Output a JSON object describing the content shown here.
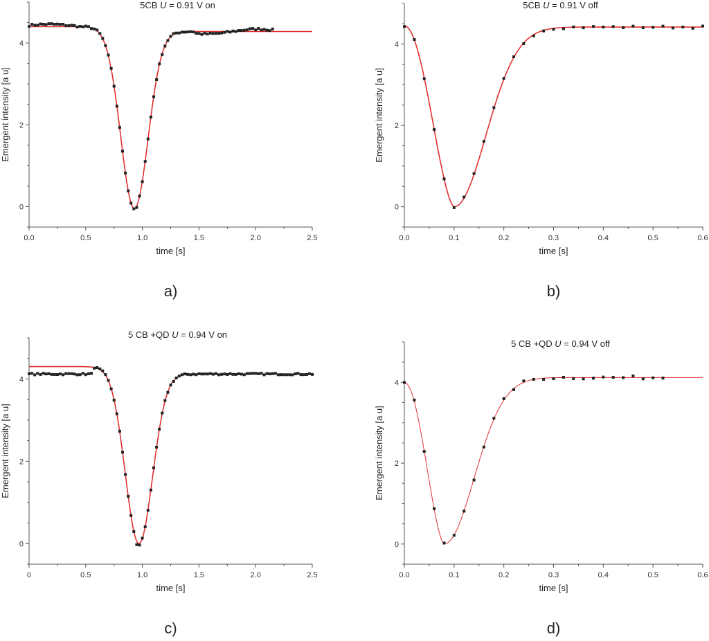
{
  "chart_data": [
    {
      "id": "a",
      "type": "scatter",
      "title_main": "5CB ",
      "title_var": "U",
      "title_rest": "  =  0.91 V on",
      "caption": "a)",
      "xlabel": "time [s]",
      "ylabel": "Emergent intensity [a u]",
      "xlim": [
        0,
        2.5
      ],
      "ylim": [
        -0.5,
        5
      ],
      "xticks": [
        0,
        0.5,
        1.0,
        1.5,
        2.0,
        2.5
      ],
      "xtick_labels": [
        "0.0",
        "0.5",
        "1.0",
        "1.5",
        "2.0",
        "2.5"
      ],
      "yticks": [
        0,
        2,
        4
      ],
      "ytick_labels": [
        "0",
        "2",
        "4"
      ],
      "fit": {
        "type": "dip",
        "center": 0.93,
        "width": 0.17,
        "depth": 4.45,
        "left": 4.4,
        "right": 4.28,
        "shape": "gaussian"
      },
      "points": {
        "x_start": 0.0,
        "x_end": 2.15,
        "step": 0.025,
        "noise": 0.05
      },
      "grid": false
    },
    {
      "id": "b",
      "type": "scatter",
      "title_main": "5CB ",
      "title_var": "U",
      "title_rest": "  =  0.91 V off",
      "caption": "b)",
      "xlabel": "time [s]",
      "ylabel": "Emergent intensity [a u]",
      "xlim": [
        0,
        0.6
      ],
      "ylim": [
        -0.5,
        5
      ],
      "xticks": [
        0,
        0.1,
        0.2,
        0.3,
        0.4,
        0.5,
        0.6
      ],
      "xtick_labels": [
        "0.0",
        "0.1",
        "0.2",
        "0.3",
        "0.4",
        "0.5",
        "0.6"
      ],
      "yticks": [
        0,
        2,
        4
      ],
      "ytick_labels": [
        "0",
        "2",
        "4"
      ],
      "fit": {
        "type": "relax",
        "t0": 0.0,
        "tmin": 0.1,
        "start": 4.45,
        "end": 4.42,
        "rise": 0.09
      },
      "points": {
        "x_start": 0.0,
        "x_end": 0.6,
        "step": 0.02,
        "noise": 0.03
      },
      "grid": false
    },
    {
      "id": "c",
      "type": "scatter",
      "title_main": "5 CB +QD ",
      "title_var": "U",
      "title_rest": "  =  0.94 V on",
      "caption": "c)",
      "xlabel": "time [s]",
      "ylabel": "Emergent intensity [a u]",
      "xlim": [
        0,
        2.5
      ],
      "ylim": [
        -0.5,
        5
      ],
      "xticks": [
        0,
        0.5,
        1.0,
        1.5,
        2.0,
        2.5
      ],
      "xtick_labels": [
        "0",
        "0.5",
        "1.0",
        "1.5",
        "2.0",
        "2.5"
      ],
      "yticks": [
        0,
        2,
        4
      ],
      "ytick_labels": [
        "0",
        "2",
        "4"
      ],
      "fit": {
        "type": "dip",
        "center": 0.97,
        "width": 0.17,
        "depth": 4.3,
        "left": 4.3,
        "right": 4.12,
        "shape": "gaussian"
      },
      "points": {
        "x_start": 0.0,
        "x_end": 2.5,
        "step": 0.025,
        "noise": 0.04,
        "left_level": 4.12
      },
      "grid": false
    },
    {
      "id": "d",
      "type": "scatter",
      "title_main": "5 CB +QD ",
      "title_var": "U",
      "title_rest": "  =  0.94 V off",
      "caption": "d)",
      "xlabel": "time [s]",
      "ylabel": "Emergent intensity [a u]",
      "xlim": [
        0,
        0.6
      ],
      "ylim": [
        -0.5,
        5
      ],
      "xticks": [
        0,
        0.1,
        0.2,
        0.3,
        0.4,
        0.5,
        0.6
      ],
      "xtick_labels": [
        "0.0",
        "0.1",
        "0.2",
        "0.3",
        "0.4",
        "0.5",
        "0.6"
      ],
      "yticks": [
        0,
        2,
        4
      ],
      "ytick_labels": [
        "0",
        "2",
        "4"
      ],
      "fit": {
        "type": "relax",
        "t0": 0.0,
        "tmin": 0.08,
        "start": 4.0,
        "end": 4.12,
        "rise": 0.085
      },
      "points": {
        "x_start": 0.0,
        "x_end": 0.52,
        "step": 0.02,
        "noise": 0.04
      },
      "grid": false,
      "thin_fit": true
    }
  ],
  "colors": {
    "fit": "#e03030",
    "points": "#222222",
    "axis": "#555555"
  }
}
